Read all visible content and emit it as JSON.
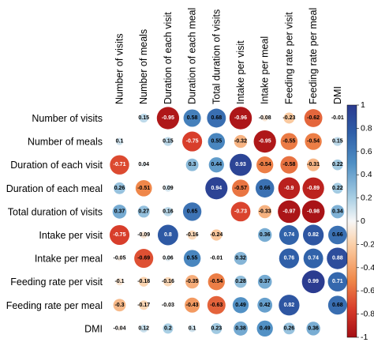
{
  "chart_data": {
    "type": "heatmap",
    "variables": [
      "Number of visits",
      "Number of meals",
      "Duration of each visit",
      "Duration of each meal",
      "Total duration of visits",
      "Intake per visit",
      "Intake per meal",
      "Feeding rate per visit",
      "Feeding rate per meal",
      "DMI"
    ],
    "matrix": [
      [
        null,
        0.15,
        -0.95,
        0.58,
        0.68,
        -0.96,
        -0.08,
        -0.23,
        -0.62,
        -0.01
      ],
      [
        0.1,
        null,
        0.15,
        -0.75,
        0.55,
        -0.32,
        -0.95,
        -0.55,
        -0.54,
        0.15
      ],
      [
        -0.71,
        0.04,
        null,
        0.3,
        0.44,
        0.93,
        -0.54,
        -0.58,
        -0.31,
        0.22
      ],
      [
        0.26,
        -0.51,
        0.09,
        null,
        0.94,
        -0.57,
        0.66,
        -0.9,
        -0.89,
        0.22
      ],
      [
        0.37,
        0.27,
        0.16,
        0.65,
        null,
        -0.73,
        -0.33,
        -0.97,
        -0.98,
        0.34
      ],
      [
        -0.75,
        -0.09,
        0.8,
        -0.16,
        -0.24,
        null,
        0.36,
        0.74,
        0.82,
        0.66
      ],
      [
        -0.05,
        -0.69,
        0.06,
        0.55,
        -0.01,
        0.32,
        null,
        0.76,
        0.74,
        0.88
      ],
      [
        -0.1,
        -0.18,
        -0.16,
        -0.35,
        -0.54,
        0.28,
        0.37,
        null,
        0.99,
        0.71
      ],
      [
        -0.3,
        -0.17,
        -0.03,
        -0.43,
        -0.63,
        0.49,
        0.42,
        0.82,
        null,
        0.68
      ],
      [
        -0.04,
        0.12,
        0.2,
        0.1,
        0.23,
        0.38,
        0.49,
        0.26,
        0.36,
        null
      ]
    ],
    "value_labels": [
      [
        null,
        "0.15",
        "-0.95",
        "0.58",
        "0.68",
        "-0.96",
        "-0.08",
        "-0.23",
        "-0.62",
        "-0.01"
      ],
      [
        "0.1",
        null,
        "0.15",
        "-0.75",
        "0.55",
        "-0.32",
        "-0.95",
        "-0.55",
        "-0.54",
        "0.15"
      ],
      [
        "-0.71",
        "0.04",
        null,
        "0.3",
        "0.44",
        "0.93",
        "-0.54",
        "-0.58",
        "-0.31",
        "0.22"
      ],
      [
        "0.26",
        "-0.51",
        "0.09",
        null,
        "0.94",
        "-0.57",
        "0.66",
        "-0.9",
        "-0.89",
        "0.22"
      ],
      [
        "0.37",
        "0.27",
        "0.16",
        "0.65",
        null,
        "-0.73",
        "-0.33",
        "-0.97",
        "-0.98",
        "0.34"
      ],
      [
        "-0.75",
        "-0.09",
        "0.8",
        "-0.16",
        "-0.24",
        null,
        "0.36",
        "0.74",
        "0.82",
        "0.66"
      ],
      [
        "-0.05",
        "-0.69",
        "0.06",
        "0.55",
        "-0.01",
        "0.32",
        null,
        "0.76",
        "0.74",
        "0.88"
      ],
      [
        "-0.1",
        "-0.18",
        "-0.16",
        "-0.35",
        "-0.54",
        "0.28",
        "0.37",
        null,
        "0.99",
        "0.71"
      ],
      [
        "-0.3",
        "-0.17",
        "-0.03",
        "-0.43",
        "-0.63",
        "0.49",
        "0.42",
        "0.82",
        null,
        "0.68"
      ],
      [
        "-0.04",
        "0.12",
        "0.2",
        "0.1",
        "0.23",
        "0.38",
        "0.49",
        "0.26",
        "0.36",
        null
      ]
    ],
    "color_scale": {
      "range": [
        -1,
        1
      ],
      "ticks": [
        "1",
        "0.8",
        "0.6",
        "0.4",
        "0.2",
        "0",
        "-0.2",
        "-0.4",
        "-0.6",
        "-0.8",
        "-1"
      ],
      "low_color": "#b2182b",
      "mid_color": "#f7f7f7",
      "high_color": "#2b3a8f"
    },
    "legend_position": "right"
  }
}
